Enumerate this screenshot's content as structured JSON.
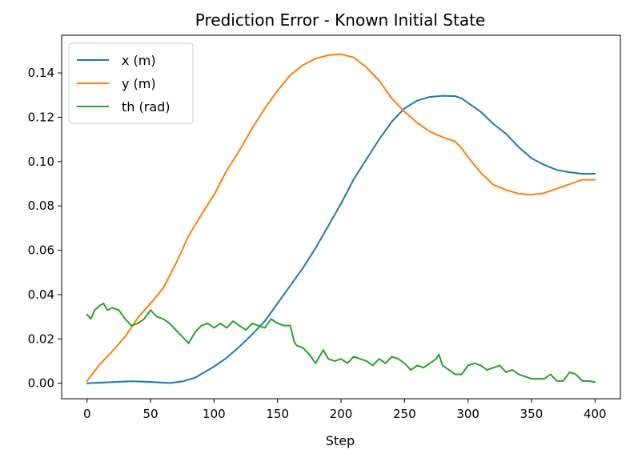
{
  "chart_data": {
    "type": "line",
    "title": "Prediction Error - Known Initial State",
    "xlabel": "Step",
    "ylabel": "",
    "xlim": [
      -20,
      420
    ],
    "ylim": [
      -0.007,
      0.157
    ],
    "xticks": [
      0,
      50,
      100,
      150,
      200,
      250,
      300,
      350,
      400
    ],
    "xtick_labels": [
      "0",
      "50",
      "100",
      "150",
      "200",
      "250",
      "300",
      "350",
      "400"
    ],
    "yticks": [
      0.0,
      0.02,
      0.04,
      0.06,
      0.08,
      0.1,
      0.12,
      0.14
    ],
    "ytick_labels": [
      "0.00",
      "0.02",
      "0.04",
      "0.06",
      "0.08",
      "0.10",
      "0.12",
      "0.14"
    ],
    "grid": false,
    "legend_position": "top-left",
    "series": [
      {
        "name": "x (m)",
        "color": "#1f77b4",
        "x": [
          0,
          20,
          35,
          50,
          65,
          75,
          85,
          100,
          110,
          120,
          130,
          140,
          150,
          160,
          170,
          180,
          190,
          200,
          210,
          220,
          230,
          240,
          250,
          260,
          270,
          280,
          290,
          295,
          300,
          310,
          320,
          330,
          340,
          350,
          360,
          370,
          380,
          390,
          400
        ],
        "y": [
          0.0,
          0.0005,
          0.0009,
          0.0006,
          0.0001,
          0.0008,
          0.0025,
          0.0075,
          0.0115,
          0.0165,
          0.022,
          0.028,
          0.036,
          0.044,
          0.052,
          0.061,
          0.071,
          0.081,
          0.092,
          0.101,
          0.11,
          0.118,
          0.124,
          0.1275,
          0.1292,
          0.1297,
          0.1295,
          0.1285,
          0.1265,
          0.1225,
          0.117,
          0.1125,
          0.1065,
          0.1015,
          0.0985,
          0.0962,
          0.0952,
          0.0945,
          0.0945
        ]
      },
      {
        "name": "y (m)",
        "color": "#ff7f0e",
        "x": [
          0,
          10,
          20,
          30,
          40,
          50,
          60,
          70,
          80,
          90,
          100,
          110,
          120,
          130,
          140,
          150,
          160,
          170,
          180,
          190,
          200,
          210,
          220,
          230,
          240,
          250,
          260,
          270,
          280,
          290,
          295,
          300,
          310,
          320,
          330,
          340,
          350,
          360,
          370,
          380,
          390,
          400
        ],
        "y": [
          0.001,
          0.0085,
          0.0145,
          0.021,
          0.0295,
          0.036,
          0.043,
          0.054,
          0.0665,
          0.076,
          0.085,
          0.096,
          0.105,
          0.115,
          0.124,
          0.132,
          0.139,
          0.1435,
          0.1465,
          0.148,
          0.1485,
          0.147,
          0.1425,
          0.1365,
          0.1285,
          0.1225,
          0.1175,
          0.1135,
          0.111,
          0.109,
          0.106,
          0.102,
          0.095,
          0.0895,
          0.0872,
          0.0855,
          0.085,
          0.0858,
          0.0878,
          0.0898,
          0.0918,
          0.0918
        ]
      },
      {
        "name": "th (rad)",
        "color": "#2ca02c",
        "x": [
          0,
          3,
          6,
          10,
          13,
          16,
          20,
          25,
          30,
          35,
          40,
          45,
          50,
          55,
          60,
          65,
          70,
          75,
          80,
          85,
          90,
          95,
          100,
          105,
          110,
          115,
          120,
          125,
          130,
          135,
          140,
          145,
          150,
          155,
          160,
          163,
          165,
          170,
          175,
          180,
          183,
          186,
          190,
          195,
          200,
          205,
          210,
          215,
          220,
          225,
          230,
          235,
          240,
          245,
          250,
          255,
          260,
          265,
          270,
          275,
          277,
          280,
          285,
          290,
          295,
          300,
          305,
          310,
          315,
          320,
          325,
          330,
          335,
          340,
          345,
          350,
          355,
          360,
          365,
          370,
          375,
          380,
          385,
          390,
          395,
          400
        ],
        "y": [
          0.031,
          0.029,
          0.033,
          0.035,
          0.036,
          0.033,
          0.034,
          0.033,
          0.029,
          0.026,
          0.027,
          0.029,
          0.033,
          0.03,
          0.029,
          0.027,
          0.024,
          0.021,
          0.018,
          0.023,
          0.026,
          0.027,
          0.025,
          0.027,
          0.025,
          0.028,
          0.026,
          0.024,
          0.027,
          0.026,
          0.025,
          0.029,
          0.027,
          0.026,
          0.026,
          0.019,
          0.017,
          0.016,
          0.013,
          0.009,
          0.012,
          0.015,
          0.011,
          0.01,
          0.011,
          0.009,
          0.012,
          0.011,
          0.01,
          0.008,
          0.011,
          0.009,
          0.012,
          0.011,
          0.009,
          0.006,
          0.008,
          0.007,
          0.009,
          0.011,
          0.013,
          0.008,
          0.006,
          0.004,
          0.004,
          0.008,
          0.009,
          0.008,
          0.006,
          0.007,
          0.008,
          0.005,
          0.006,
          0.004,
          0.003,
          0.002,
          0.002,
          0.002,
          0.004,
          0.001,
          0.001,
          0.005,
          0.004,
          0.001,
          0.001,
          0.0005
        ]
      }
    ]
  }
}
